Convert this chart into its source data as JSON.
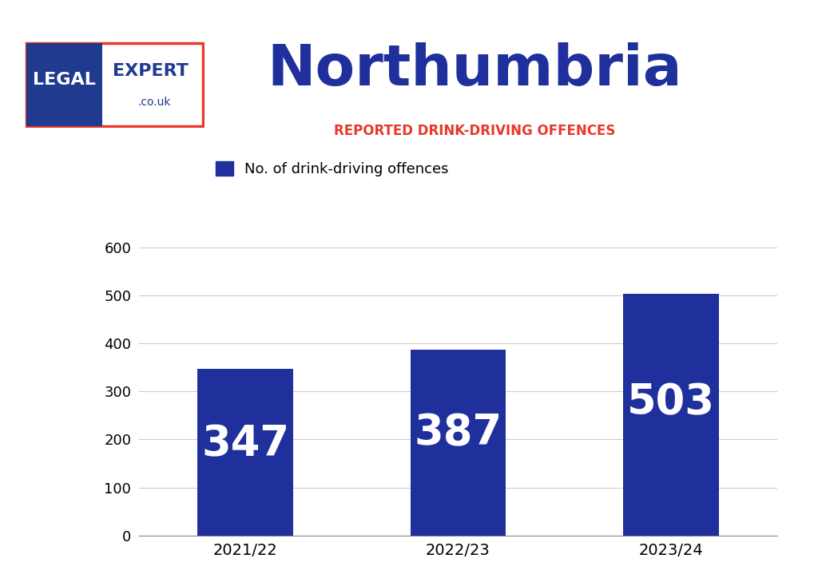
{
  "title": "Northumbria",
  "subtitle": "REPORTED DRINK-DRIVING OFFENCES",
  "legend_label": "No. of drink-driving offences",
  "categories": [
    "2021/22",
    "2022/23",
    "2023/24"
  ],
  "values": [
    347,
    387,
    503
  ],
  "bar_color": "#1F2F9C",
  "bar_label_color": "#FFFFFF",
  "title_color": "#1F2F9C",
  "subtitle_color": "#E8392A",
  "background_color": "#FFFFFF",
  "border_color": "#2E5FA3",
  "grid_color": "#CCCCCC",
  "ylim": [
    0,
    630
  ],
  "yticks": [
    0,
    100,
    200,
    300,
    400,
    500,
    600
  ],
  "logo_bg_color": "#1F3A8F",
  "logo_text_color": "#FFFFFF",
  "logo_expert_color": "#1F3A8F",
  "logo_couk_color": "#1F3A8F",
  "logo_border_color": "#E8392A"
}
